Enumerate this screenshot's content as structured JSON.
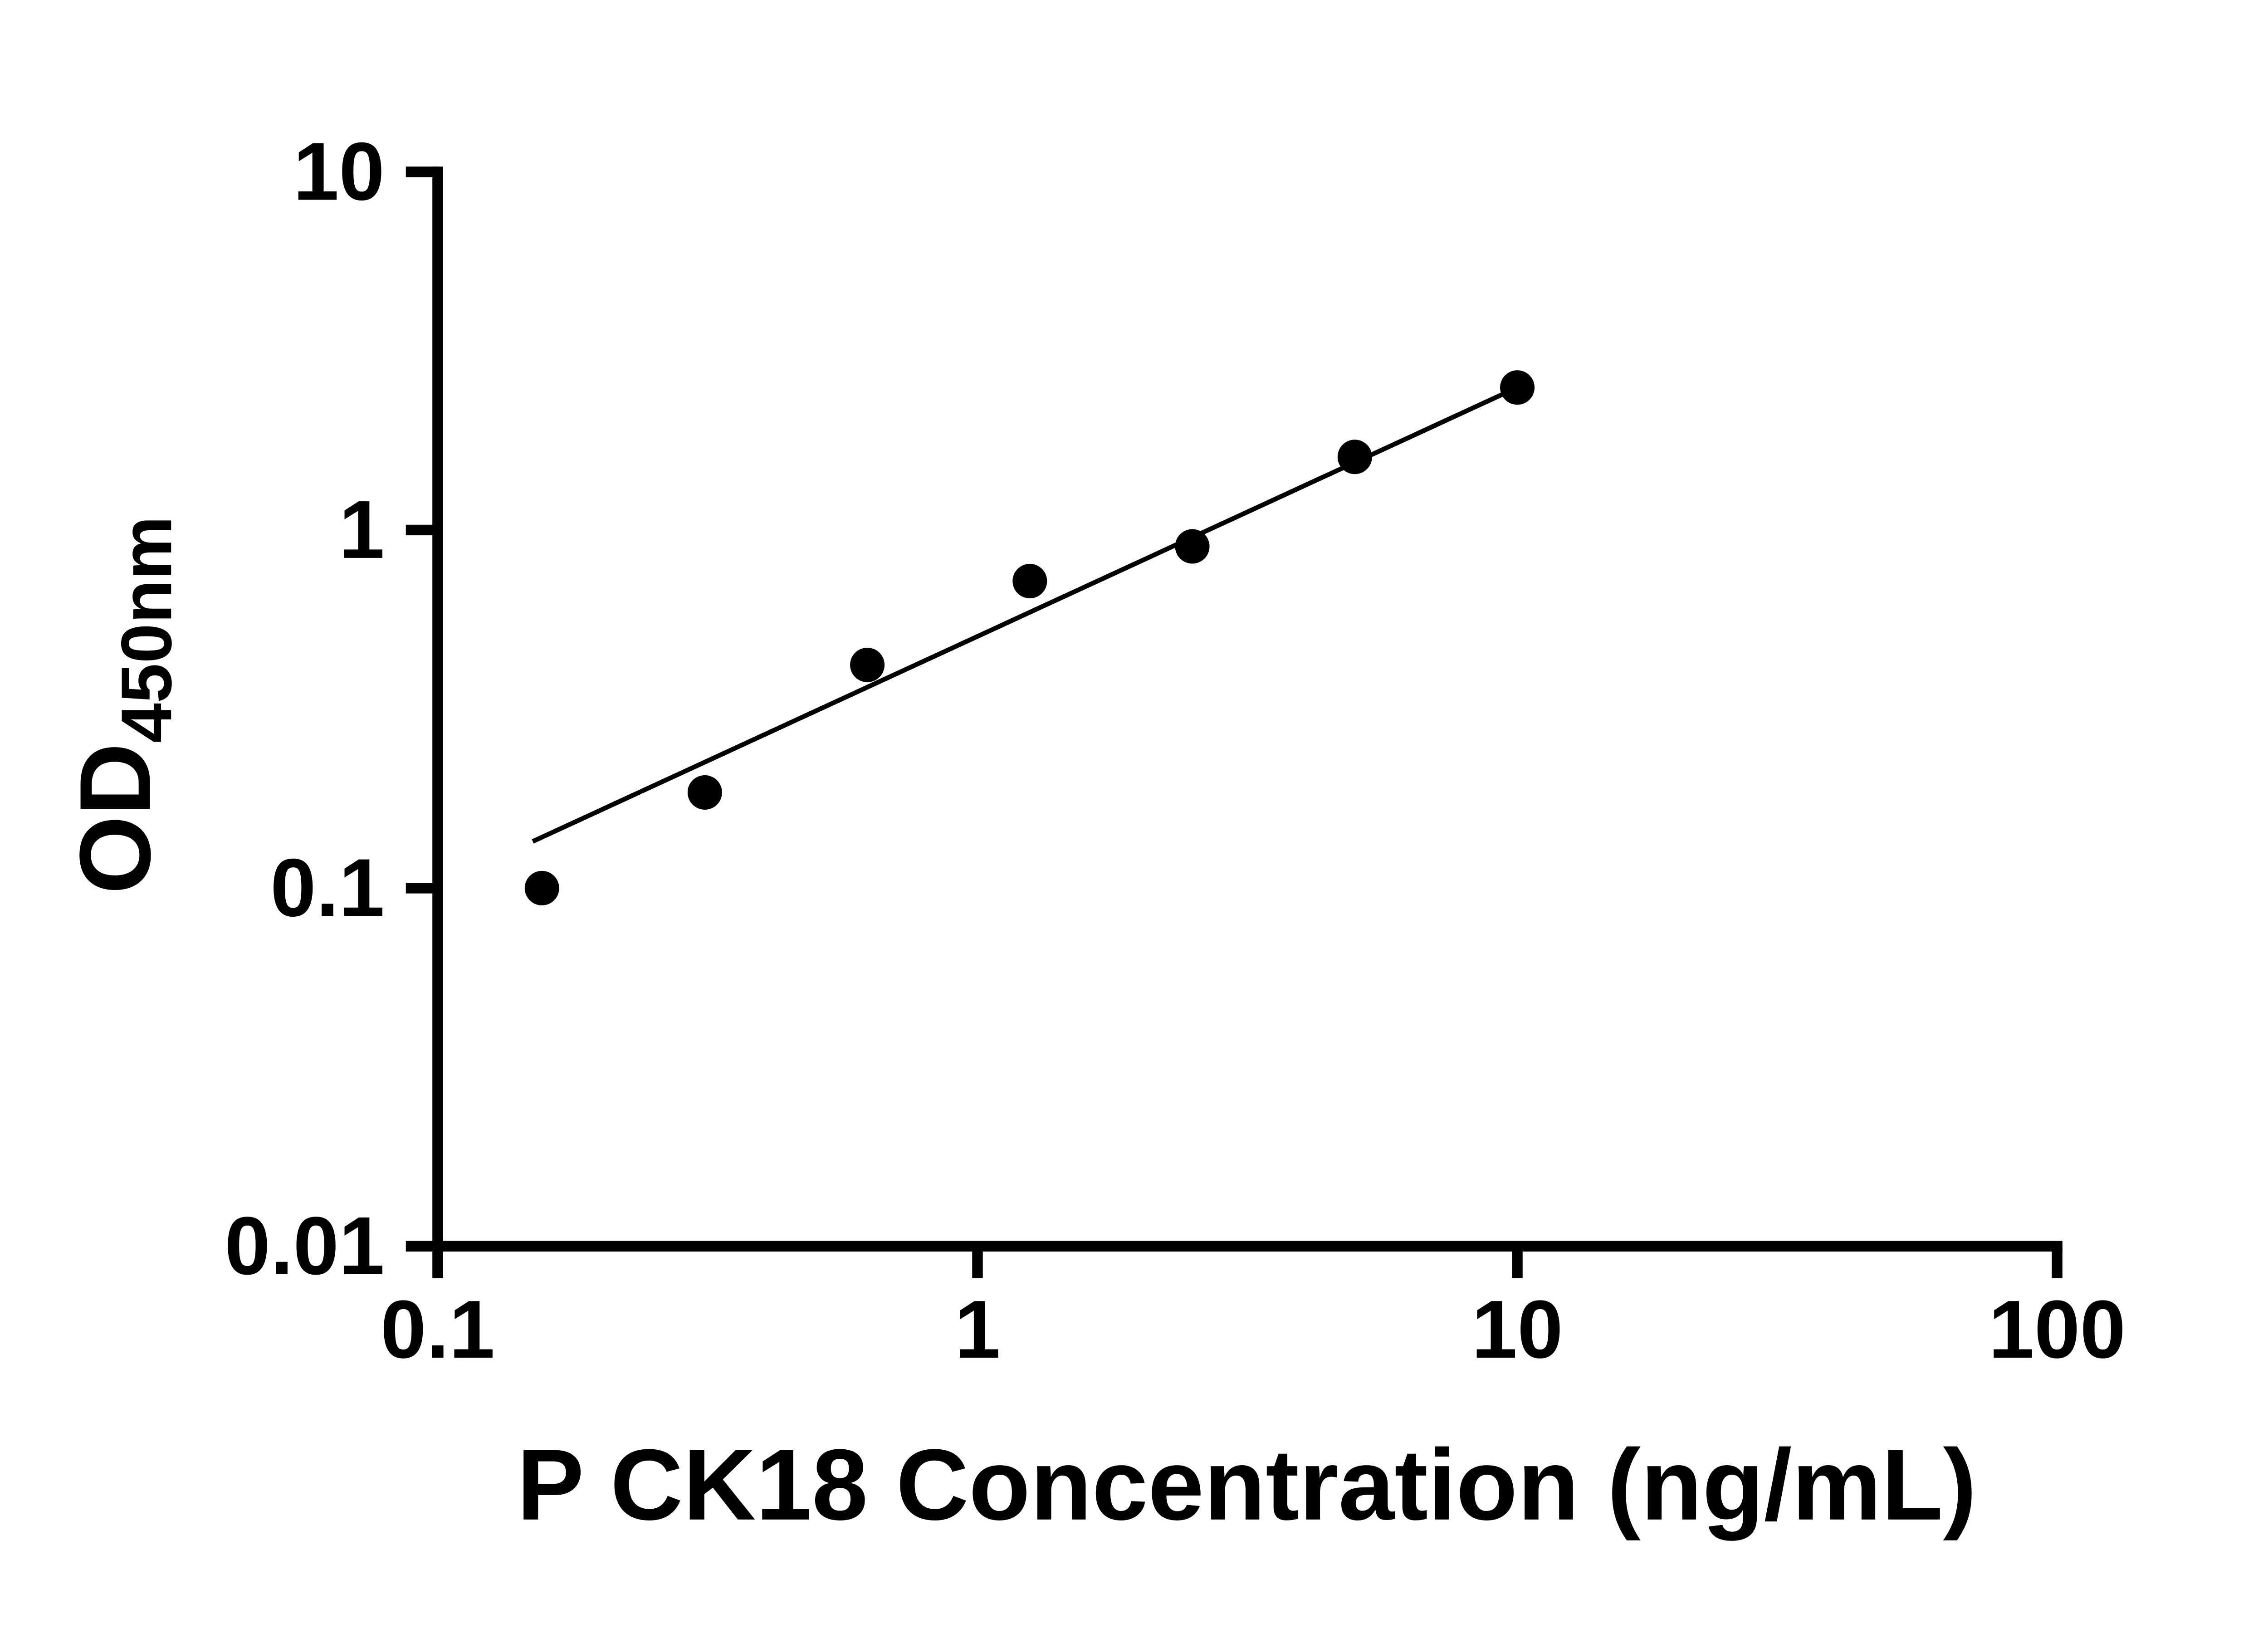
{
  "chart_data": {
    "type": "scatter",
    "title": "",
    "xlabel": "P CK18 Concentration (ng/mL)",
    "ylabel": {
      "main": "OD",
      "sub": "450nm"
    },
    "x_scale": "log",
    "y_scale": "log",
    "xlim": [
      0.1,
      100
    ],
    "ylim": [
      0.01,
      10
    ],
    "grid": "off",
    "legend": "none",
    "x_ticks": [
      {
        "value": 0.1,
        "label": "0.1"
      },
      {
        "value": 1,
        "label": "1"
      },
      {
        "value": 10,
        "label": "10"
      },
      {
        "value": 100,
        "label": "100"
      }
    ],
    "y_ticks": [
      {
        "value": 0.01,
        "label": "0.01"
      },
      {
        "value": 0.1,
        "label": "0.1"
      },
      {
        "value": 1,
        "label": "1"
      },
      {
        "value": 10,
        "label": "10"
      }
    ],
    "series": [
      {
        "name": "standard-curve-points",
        "marker": "circle",
        "color": "#000000",
        "points": [
          {
            "x": 0.156,
            "y": 0.1
          },
          {
            "x": 0.3125,
            "y": 0.185
          },
          {
            "x": 0.625,
            "y": 0.42
          },
          {
            "x": 1.25,
            "y": 0.72
          },
          {
            "x": 2.5,
            "y": 0.9
          },
          {
            "x": 5,
            "y": 1.6
          },
          {
            "x": 10,
            "y": 2.5
          }
        ]
      }
    ],
    "trendline": {
      "x1": 0.15,
      "y1": 0.135,
      "x2": 10,
      "y2": 2.5,
      "color": "#000000"
    },
    "colors": {
      "foreground": "#000000",
      "background": "#ffffff"
    }
  }
}
